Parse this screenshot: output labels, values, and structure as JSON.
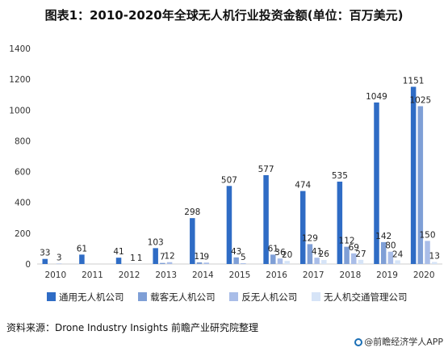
{
  "chart_data": {
    "type": "bar",
    "title": "图表1：2010-2020年全球无人机行业投资金额(单位：百万美元)",
    "categories": [
      "2010",
      "2011",
      "2012",
      "2013",
      "2014",
      "2015",
      "2016",
      "2017",
      "2018",
      "2019",
      "2020"
    ],
    "series": [
      {
        "name": "通用无人机公司",
        "color": "#2f6cc5",
        "values": [
          33,
          61,
          41,
          103,
          298,
          507,
          577,
          474,
          535,
          1049,
          1151
        ],
        "labels": [
          "33",
          "61",
          "41",
          "103",
          "298",
          "507",
          "577",
          "474",
          "535",
          "1049",
          "1151"
        ]
      },
      {
        "name": "载客无人机公司",
        "color": "#7f9fd6",
        "values": [
          0,
          0,
          0,
          7,
          11,
          43,
          61,
          129,
          112,
          142,
          1025
        ],
        "labels": [
          "",
          "",
          "",
          "7",
          "11",
          "43",
          "61",
          "129",
          "112",
          "142",
          "1025"
        ]
      },
      {
        "name": "反无人机公司",
        "color": "#a9bde8",
        "values": [
          3,
          0,
          1,
          12,
          9,
          5,
          36,
          41,
          69,
          80,
          150
        ],
        "labels": [
          "3",
          "",
          "1",
          "12",
          "9",
          "5",
          "36",
          "41",
          "69",
          "80",
          "150"
        ]
      },
      {
        "name": "无人机交通管理公司",
        "color": "#d6e4f7",
        "values": [
          0,
          0,
          1,
          0,
          0,
          0,
          20,
          26,
          27,
          24,
          13
        ],
        "labels": [
          "",
          "",
          "1",
          "",
          "",
          "",
          "20",
          "26",
          "27",
          "24",
          "13"
        ]
      }
    ],
    "ylim": [
      0,
      1400
    ],
    "yticks": [
      0,
      200,
      400,
      600,
      800,
      1000,
      1200,
      1400
    ],
    "grid": false,
    "legend": "bottom"
  },
  "footer": {
    "source": "资料来源：Drone Industry Insights 前瞻产业研究院整理",
    "brand": "@前瞻经济学人APP"
  }
}
